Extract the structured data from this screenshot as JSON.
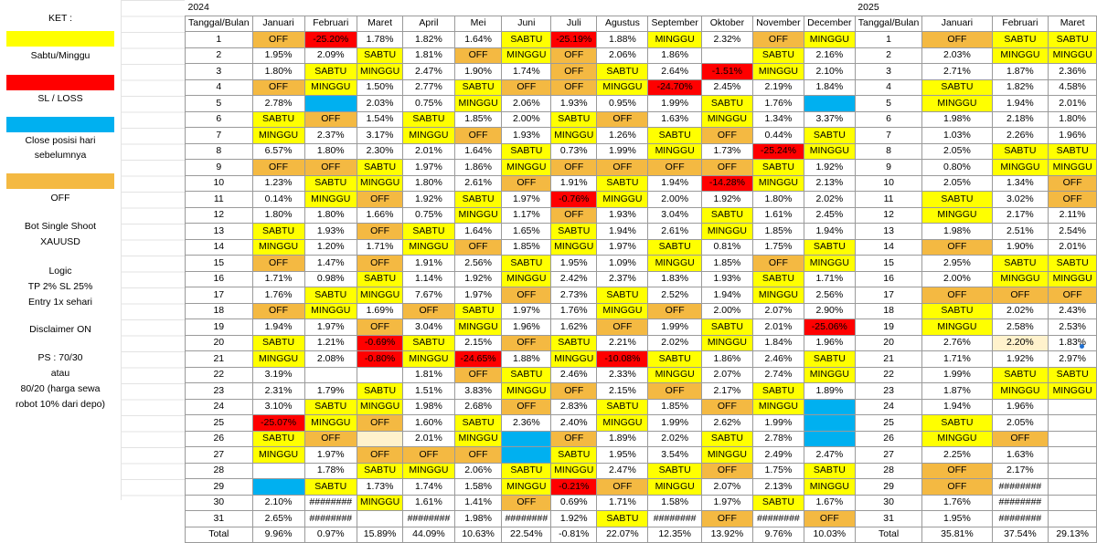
{
  "legend": {
    "title": "KET :",
    "items": [
      {
        "label": "Sabtu/Minggu",
        "color": "#ffff00"
      },
      {
        "label": "SL / LOSS",
        "color": "#ff0000"
      },
      {
        "label": "Close posisi hari sebelumnya",
        "color": "#00b0f0"
      },
      {
        "label": "OFF",
        "color": "#f4b942"
      }
    ],
    "bot_line1": "Bot Single Shoot",
    "bot_line2": "XAUUSD",
    "logic_line1": "Logic",
    "logic_line2": "TP 2% SL 25%",
    "logic_line3": "Entry 1x sehari",
    "disclaimer": "Disclaimer ON",
    "ps_line1": "PS : 70/30",
    "ps_line2": "atau",
    "ps_line3": "80/20 (harga sewa",
    "ps_line4": "robot 10% dari depo)"
  },
  "sheet": {
    "year_2024": "2024",
    "year_2025": "2025",
    "header_2024": [
      "Tanggal/Bulan",
      "Januari",
      "Februari",
      "Maret",
      "April",
      "Mei",
      "Juni",
      "Juli",
      "Agustus",
      "September",
      "Oktober",
      "November",
      "December"
    ],
    "header_2025": [
      "Tanggal/Bulan",
      "Januari",
      "Februari",
      "Maret"
    ],
    "rows_2024": [
      [
        "1",
        "OFF",
        "-25.20%",
        "1.78%",
        "1.82%",
        "1.64%",
        "SABTU",
        "-25.19%",
        "1.88%",
        "MINGGU",
        "2.32%",
        "OFF",
        "MINGGU"
      ],
      [
        "2",
        "1.95%",
        "2.09%",
        "SABTU",
        "1.81%",
        "OFF",
        "MINGGU",
        "OFF",
        "2.06%",
        "1.86%",
        "",
        "SABTU",
        "2.16%"
      ],
      [
        "3",
        "1.80%",
        "SABTU",
        "MINGGU",
        "2.47%",
        "1.90%",
        "1.74%",
        "OFF",
        "SABTU",
        "2.64%",
        "-1.51%",
        "MINGGU",
        "2.10%"
      ],
      [
        "4",
        "OFF",
        "MINGGU",
        "1.50%",
        "2.77%",
        "SABTU",
        "OFF",
        "OFF",
        "MINGGU",
        "-24.70%",
        "2.45%",
        "2.19%",
        "1.84%"
      ],
      [
        "5",
        "2.78%",
        "",
        "2.03%",
        "0.75%",
        "MINGGU",
        "2.06%",
        "1.93%",
        "0.95%",
        "1.99%",
        "SABTU",
        "1.76%",
        ""
      ],
      [
        "6",
        "SABTU",
        "OFF",
        "1.54%",
        "SABTU",
        "1.85%",
        "2.00%",
        "SABTU",
        "OFF",
        "1.63%",
        "MINGGU",
        "1.34%",
        "3.37%"
      ],
      [
        "7",
        "MINGGU",
        "2.37%",
        "3.17%",
        "MINGGU",
        "OFF",
        "1.93%",
        "MINGGU",
        "1.26%",
        "SABTU",
        "OFF",
        "0.44%",
        "SABTU"
      ],
      [
        "8",
        "6.57%",
        "1.80%",
        "2.30%",
        "2.01%",
        "1.64%",
        "SABTU",
        "0.73%",
        "1.99%",
        "MINGGU",
        "1.73%",
        "-25.24%",
        "MINGGU"
      ],
      [
        "9",
        "OFF",
        "OFF",
        "SABTU",
        "1.97%",
        "1.86%",
        "MINGGU",
        "OFF",
        "OFF",
        "OFF",
        "OFF",
        "SABTU",
        "1.92%"
      ],
      [
        "10",
        "1.23%",
        "SABTU",
        "MINGGU",
        "1.80%",
        "2.61%",
        "OFF",
        "1.91%",
        "SABTU",
        "1.94%",
        "-14.28%",
        "MINGGU",
        "2.13%"
      ],
      [
        "11",
        "0.14%",
        "MINGGU",
        "OFF",
        "1.92%",
        "SABTU",
        "1.97%",
        "-0.76%",
        "MINGGU",
        "2.00%",
        "1.92%",
        "1.80%",
        "2.02%"
      ],
      [
        "12",
        "1.80%",
        "1.80%",
        "1.66%",
        "0.75%",
        "MINGGU",
        "1.17%",
        "OFF",
        "1.93%",
        "3.04%",
        "SABTU",
        "1.61%",
        "2.45%"
      ],
      [
        "13",
        "SABTU",
        "1.93%",
        "OFF",
        "SABTU",
        "1.64%",
        "1.65%",
        "SABTU",
        "1.94%",
        "2.61%",
        "MINGGU",
        "1.85%",
        "1.94%"
      ],
      [
        "14",
        "MINGGU",
        "1.20%",
        "1.71%",
        "MINGGU",
        "OFF",
        "1.85%",
        "MINGGU",
        "1.97%",
        "SABTU",
        "0.81%",
        "1.75%",
        "SABTU"
      ],
      [
        "15",
        "OFF",
        "1.47%",
        "OFF",
        "1.91%",
        "2.56%",
        "SABTU",
        "1.95%",
        "1.09%",
        "MINGGU",
        "1.85%",
        "OFF",
        "MINGGU"
      ],
      [
        "16",
        "1.71%",
        "0.98%",
        "SABTU",
        "1.14%",
        "1.92%",
        "MINGGU",
        "2.42%",
        "2.37%",
        "1.83%",
        "1.93%",
        "SABTU",
        "1.71%"
      ],
      [
        "17",
        "1.76%",
        "SABTU",
        "MINGGU",
        "7.67%",
        "1.97%",
        "OFF",
        "2.73%",
        "SABTU",
        "2.52%",
        "1.94%",
        "MINGGU",
        "2.56%"
      ],
      [
        "18",
        "OFF",
        "MINGGU",
        "1.69%",
        "OFF",
        "SABTU",
        "1.97%",
        "1.76%",
        "MINGGU",
        "OFF",
        "2.00%",
        "2.07%",
        "2.90%"
      ],
      [
        "19",
        "1.94%",
        "1.97%",
        "OFF",
        "3.04%",
        "MINGGU",
        "1.96%",
        "1.62%",
        "OFF",
        "1.99%",
        "SABTU",
        "2.01%",
        "-25.06%"
      ],
      [
        "20",
        "SABTU",
        "1.21%",
        "-0.69%",
        "SABTU",
        "2.15%",
        "OFF",
        "SABTU",
        "2.21%",
        "2.02%",
        "MINGGU",
        "1.84%",
        "1.96%"
      ],
      [
        "21",
        "MINGGU",
        "2.08%",
        "-0.80%",
        "MINGGU",
        "-24.65%",
        "1.88%",
        "MINGGU",
        "-10.08%",
        "SABTU",
        "1.86%",
        "2.46%",
        "SABTU"
      ],
      [
        "22",
        "3.19%",
        "",
        "",
        "1.81%",
        "OFF",
        "SABTU",
        "2.46%",
        "2.33%",
        "MINGGU",
        "2.07%",
        "2.74%",
        "MINGGU"
      ],
      [
        "23",
        "2.31%",
        "1.79%",
        "SABTU",
        "1.51%",
        "3.83%",
        "MINGGU",
        "OFF",
        "2.15%",
        "OFF",
        "2.17%",
        "SABTU",
        "1.89%"
      ],
      [
        "24",
        "3.10%",
        "SABTU",
        "MINGGU",
        "1.98%",
        "2.68%",
        "OFF",
        "2.83%",
        "SABTU",
        "1.85%",
        "OFF",
        "MINGGU",
        ""
      ],
      [
        "25",
        "-25.07%",
        "MINGGU",
        "OFF",
        "1.60%",
        "SABTU",
        "2.36%",
        "2.40%",
        "MINGGU",
        "1.99%",
        "2.62%",
        "1.99%",
        ""
      ],
      [
        "26",
        "SABTU",
        "OFF",
        "",
        "2.01%",
        "MINGGU",
        "",
        "OFF",
        "1.89%",
        "2.02%",
        "SABTU",
        "2.78%",
        ""
      ],
      [
        "27",
        "MINGGU",
        "1.97%",
        "OFF",
        "OFF",
        "OFF",
        "",
        "SABTU",
        "1.95%",
        "3.54%",
        "MINGGU",
        "2.49%",
        "2.47%"
      ],
      [
        "28",
        "",
        "1.78%",
        "SABTU",
        "MINGGU",
        "2.06%",
        "SABTU",
        "MINGGU",
        "2.47%",
        "SABTU",
        "OFF",
        "1.75%",
        "SABTU"
      ],
      [
        "29",
        "",
        "SABTU",
        "1.73%",
        "1.74%",
        "1.58%",
        "MINGGU",
        "-0.21%",
        "OFF",
        "MINGGU",
        "2.07%",
        "2.13%",
        "MINGGU"
      ],
      [
        "30",
        "2.10%",
        "########",
        "MINGGU",
        "1.61%",
        "1.41%",
        "OFF",
        "0.69%",
        "1.71%",
        "1.58%",
        "1.97%",
        "SABTU",
        "1.67%"
      ],
      [
        "31",
        "2.65%",
        "########",
        "",
        "########",
        "1.98%",
        "########",
        "1.92%",
        "SABTU",
        "########",
        "OFF",
        "########",
        "OFF"
      ]
    ],
    "rows_2025": [
      [
        "1",
        "OFF",
        "SABTU",
        "SABTU"
      ],
      [
        "2",
        "2.03%",
        "MINGGU",
        "MINGGU"
      ],
      [
        "3",
        "2.71%",
        "1.87%",
        "2.36%"
      ],
      [
        "4",
        "SABTU",
        "1.82%",
        "4.58%"
      ],
      [
        "5",
        "MINGGU",
        "1.94%",
        "2.01%"
      ],
      [
        "6",
        "1.98%",
        "2.18%",
        "1.80%"
      ],
      [
        "7",
        "1.03%",
        "2.26%",
        "1.96%"
      ],
      [
        "8",
        "2.05%",
        "SABTU",
        "SABTU"
      ],
      [
        "9",
        "0.80%",
        "MINGGU",
        "MINGGU"
      ],
      [
        "10",
        "2.05%",
        "1.34%",
        "OFF"
      ],
      [
        "11",
        "SABTU",
        "3.02%",
        "OFF"
      ],
      [
        "12",
        "MINGGU",
        "2.17%",
        "2.11%"
      ],
      [
        "13",
        "1.98%",
        "2.51%",
        "2.54%"
      ],
      [
        "14",
        "OFF",
        "1.90%",
        "2.01%"
      ],
      [
        "15",
        "2.95%",
        "SABTU",
        "SABTU"
      ],
      [
        "16",
        "2.00%",
        "MINGGU",
        "MINGGU"
      ],
      [
        "17",
        "OFF",
        "OFF",
        "OFF"
      ],
      [
        "18",
        "SABTU",
        "2.02%",
        "2.43%"
      ],
      [
        "19",
        "MINGGU",
        "2.58%",
        "2.53%"
      ],
      [
        "20",
        "2.76%",
        "2.20%",
        "1.83%"
      ],
      [
        "21",
        "1.71%",
        "1.92%",
        "2.97%"
      ],
      [
        "22",
        "1.99%",
        "SABTU",
        "SABTU"
      ],
      [
        "23",
        "1.87%",
        "MINGGU",
        "MINGGU"
      ],
      [
        "24",
        "1.94%",
        "1.96%",
        ""
      ],
      [
        "25",
        "SABTU",
        "2.05%",
        ""
      ],
      [
        "26",
        "MINGGU",
        "OFF",
        ""
      ],
      [
        "27",
        "2.25%",
        "1.63%",
        ""
      ],
      [
        "28",
        "OFF",
        "2.17%",
        ""
      ],
      [
        "29",
        "OFF",
        "########",
        ""
      ],
      [
        "30",
        "1.76%",
        "########",
        ""
      ],
      [
        "31",
        "1.95%",
        "########",
        ""
      ]
    ],
    "total_2024": [
      "Total",
      "9.96%",
      "0.97%",
      "15.89%",
      "44.09%",
      "10.63%",
      "22.54%",
      "-0.81%",
      "22.07%",
      "12.35%",
      "13.92%",
      "9.76%",
      "10.03%"
    ],
    "total_2025": [
      "Total",
      "35.81%",
      "37.54%",
      "29.13%"
    ],
    "blue_cells": [
      "2-5",
      "12-5",
      "12-22",
      "12-23",
      "12-24",
      "12-25",
      "12-26",
      "6-26",
      "6-27",
      "1-29"
    ],
    "light_cells": [
      "3-26",
      "2-20b"
    ],
    "colors": {
      "weekend": "#ffff00",
      "off": "#f4b942",
      "loss": "#ff0000",
      "close": "#00b0f0",
      "light": "#fff2cc"
    }
  }
}
